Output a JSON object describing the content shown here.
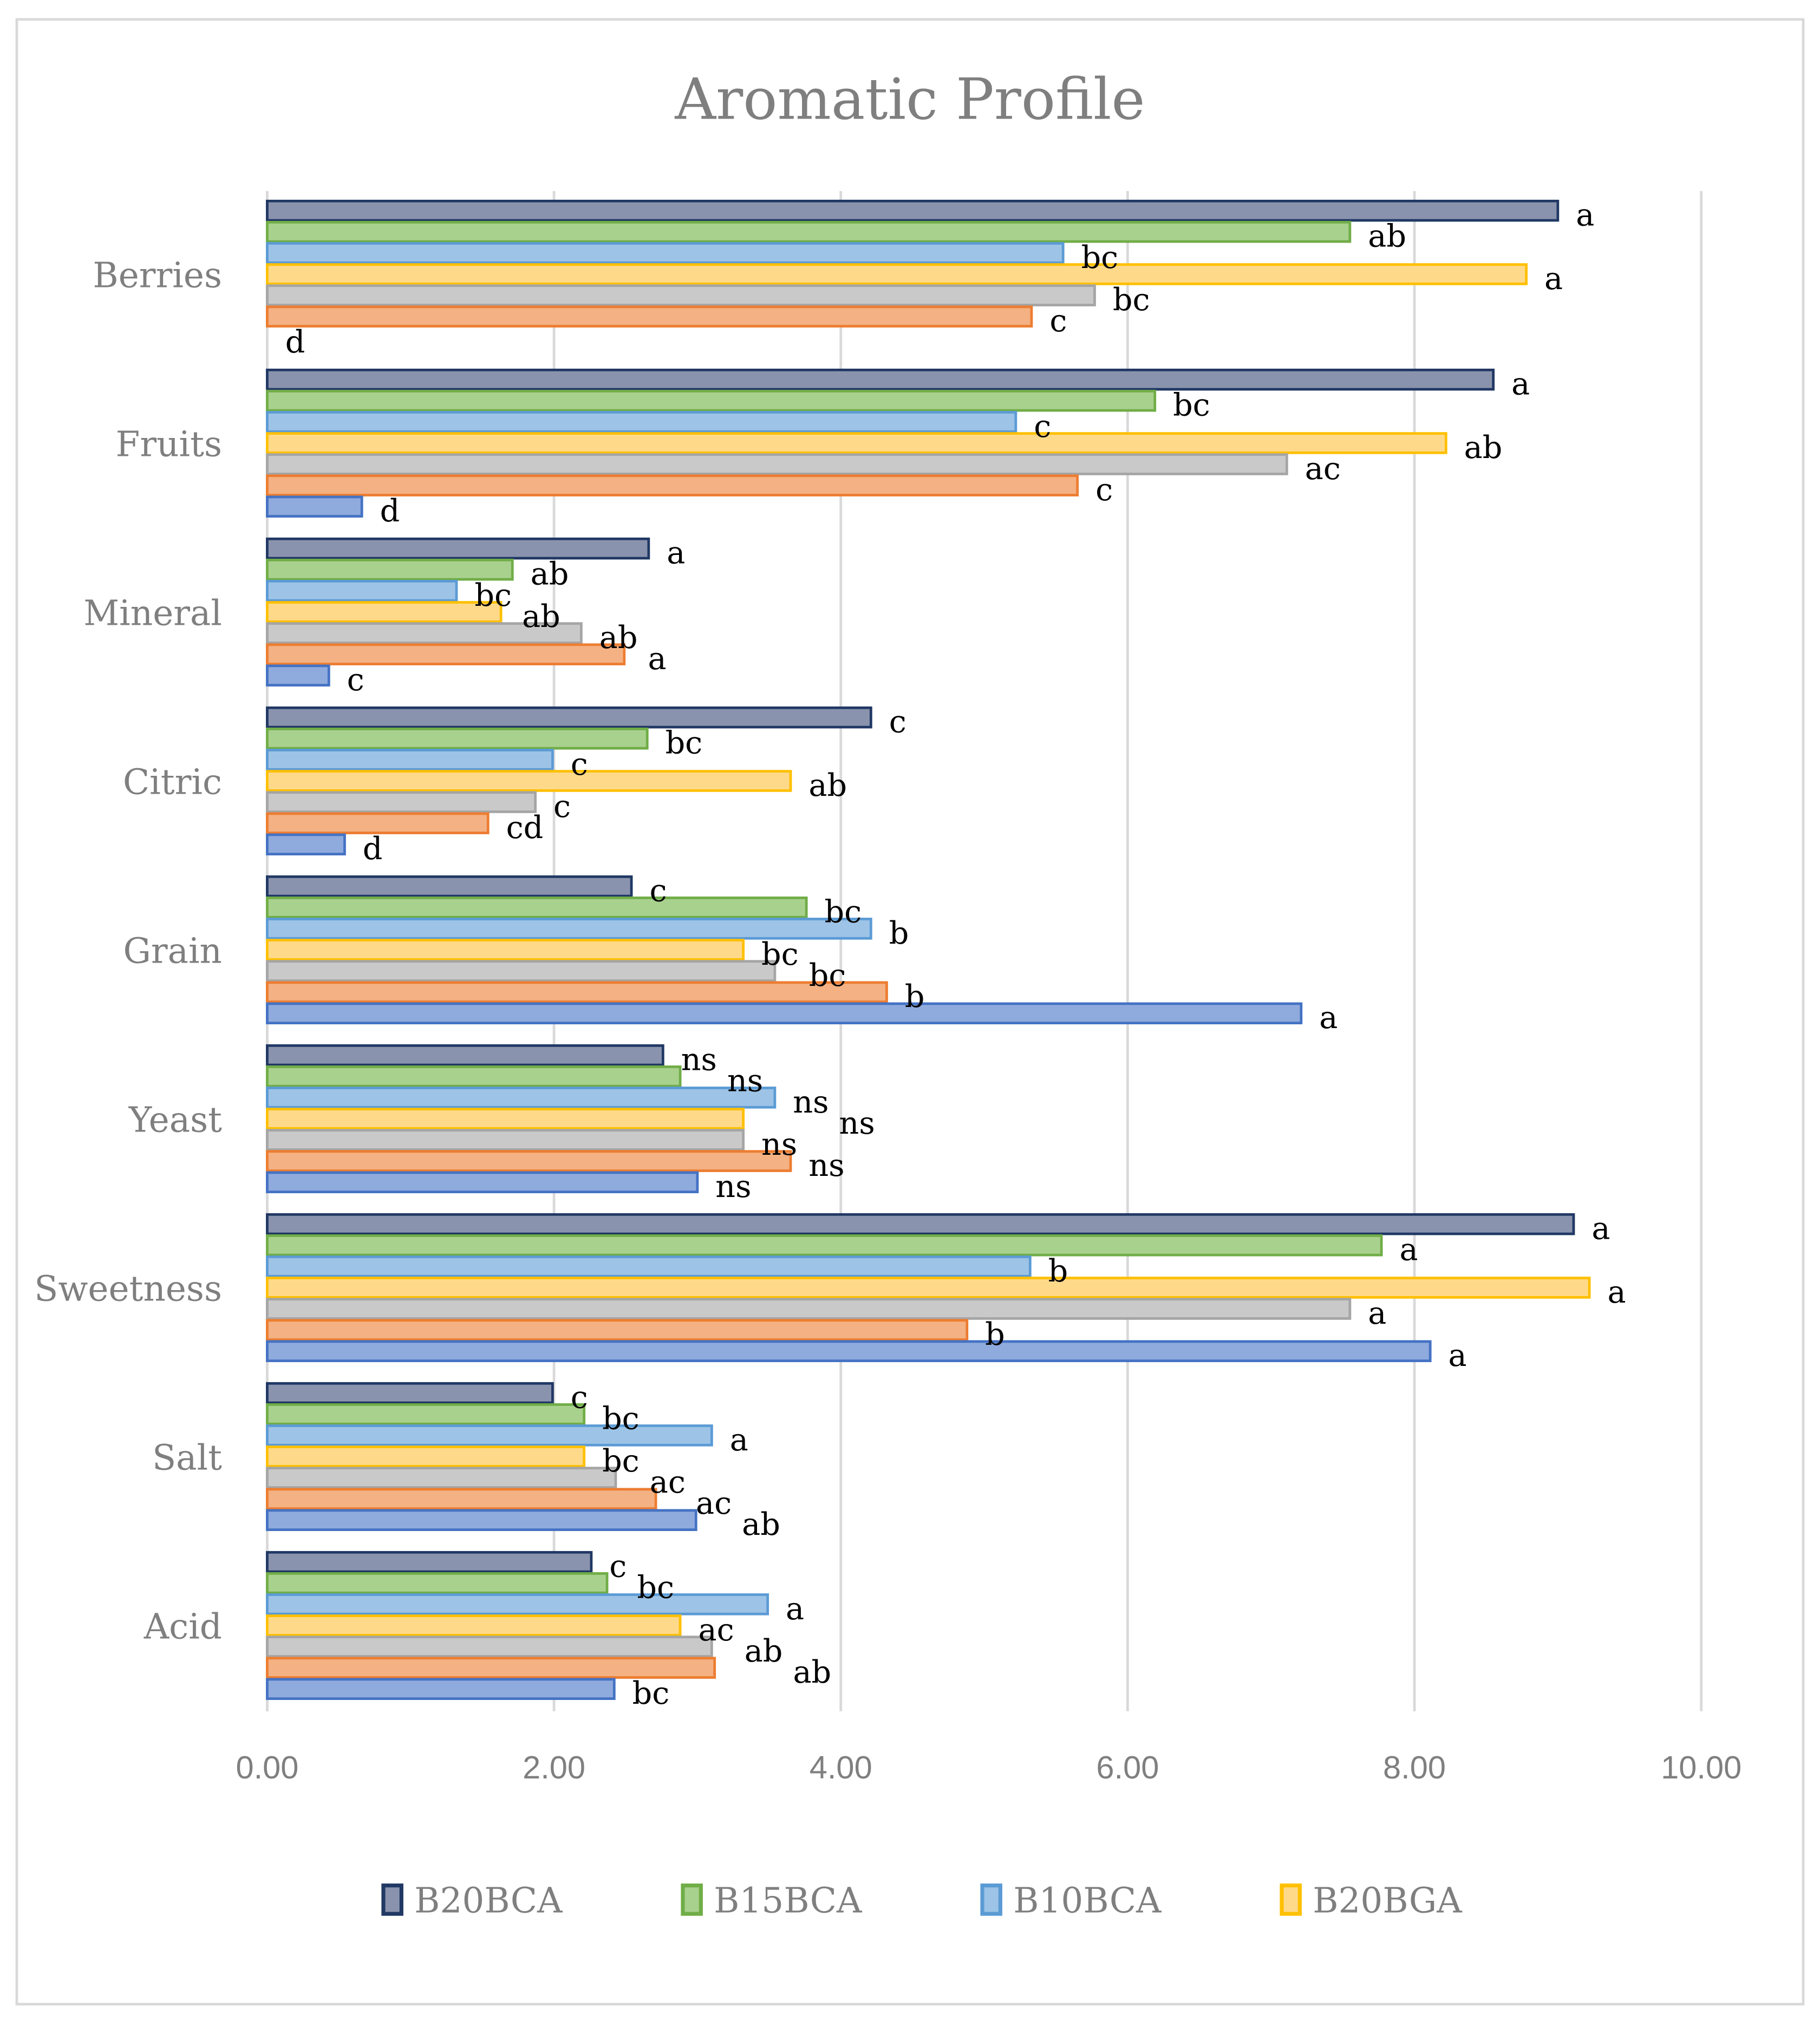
{
  "chart_data": {
    "type": "bar",
    "orientation": "horizontal",
    "title": "Aromatic Profile",
    "xlabel": "",
    "ylabel": "",
    "xlim": [
      0,
      10
    ],
    "x_ticks": [
      "0.00",
      "2.00",
      "4.00",
      "6.00",
      "8.00",
      "10.00"
    ],
    "grid": "vertical",
    "legend_position": "bottom",
    "categories": [
      "Berries",
      "Fruits",
      "Mineral",
      "Citric",
      "Grain",
      "Yeast",
      "Sweetness",
      "Salt",
      "Acid"
    ],
    "series": [
      {
        "name": "B20BCA",
        "color": "#8a93ad",
        "border": "#203864",
        "values": [
          9.0,
          8.55,
          2.66,
          4.21,
          2.54,
          2.76,
          9.11,
          1.99,
          2.26
        ],
        "labels": [
          "a",
          "a",
          "a",
          "c",
          "c",
          "ns",
          "a",
          "c",
          "c"
        ]
      },
      {
        "name": "B15BCA",
        "color": "#a9d18e",
        "border": "#70ad47",
        "values": [
          7.55,
          6.19,
          1.71,
          2.65,
          3.76,
          2.88,
          7.77,
          2.21,
          2.37
        ],
        "labels": [
          "ab",
          "bc",
          "ab",
          "bc",
          "bc",
          "ns",
          "a",
          "bc",
          "bc"
        ]
      },
      {
        "name": "B10BCA",
        "color": "#9dc3e6",
        "border": "#5b9bd5",
        "values": [
          5.55,
          5.22,
          1.32,
          1.99,
          4.21,
          3.54,
          5.32,
          3.1,
          3.49
        ],
        "labels": [
          "bc",
          "c",
          "bc",
          "c",
          "b",
          "ns",
          "b",
          "a",
          "a"
        ]
      },
      {
        "name": "B20BGA",
        "color": "#ffd98a",
        "border": "#ffc000",
        "values": [
          8.78,
          8.22,
          1.63,
          3.65,
          3.32,
          3.32,
          9.22,
          2.21,
          2.88
        ],
        "labels": [
          "a",
          "ab",
          "ab",
          "ab",
          "bc",
          "ns",
          "a",
          "bc",
          "ac"
        ]
      },
      {
        "name": "",
        "color": "#c9c9c9",
        "border": "#a5a5a5",
        "values": [
          5.77,
          7.11,
          2.19,
          1.87,
          3.54,
          3.32,
          7.55,
          2.43,
          3.1
        ],
        "labels": [
          "bc",
          "ac",
          "ab",
          "c",
          "bc",
          "ns",
          "a",
          "ac",
          "ab"
        ]
      },
      {
        "name": "",
        "color": "#f4b183",
        "border": "#ed7d31",
        "values": [
          5.33,
          5.65,
          2.49,
          1.54,
          4.32,
          3.65,
          4.88,
          2.71,
          3.12
        ],
        "labels": [
          "c",
          "c",
          "a",
          "cd",
          "b",
          "ns",
          "b",
          "ac",
          "ab"
        ]
      },
      {
        "name": "",
        "color": "#8faadc",
        "border": "#4472c4",
        "values": [
          0.0,
          0.66,
          0.43,
          0.54,
          7.21,
          3.0,
          8.11,
          2.99,
          2.42
        ],
        "labels": [
          "d",
          "d",
          "c",
          "d",
          "a",
          "ns",
          "a",
          "ab",
          "bc"
        ]
      }
    ]
  }
}
